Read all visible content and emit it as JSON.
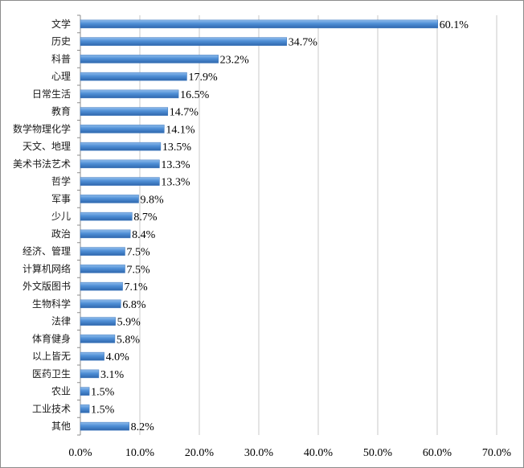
{
  "chart_data": {
    "type": "bar",
    "orientation": "horizontal",
    "categories": [
      "文学",
      "历史",
      "科普",
      "心理",
      "日常生活",
      "教育",
      "数学物理化学",
      "天文、地理",
      "美术书法艺术",
      "哲学",
      "军事",
      "少儿",
      "政治",
      "经济、管理",
      "计算机网络",
      "外文版图书",
      "生物科学",
      "法律",
      "体育健身",
      "以上皆无",
      "医药卫生",
      "农业",
      "工业技术",
      "其他"
    ],
    "values": [
      60.1,
      34.7,
      23.2,
      17.9,
      16.5,
      14.7,
      14.1,
      13.5,
      13.3,
      13.3,
      9.8,
      8.7,
      8.4,
      7.5,
      7.5,
      7.1,
      6.8,
      5.9,
      5.8,
      4.0,
      3.1,
      1.5,
      1.5,
      8.2
    ],
    "value_labels": [
      "60.1%",
      "34.7%",
      "23.2%",
      "17.9%",
      "16.5%",
      "14.7%",
      "14.1%",
      "13.5%",
      "13.3%",
      "13.3%",
      "9.8%",
      "8.7%",
      "8.4%",
      "7.5%",
      "7.5%",
      "7.1%",
      "6.8%",
      "5.9%",
      "5.8%",
      "4.0%",
      "3.1%",
      "1.5%",
      "1.5%",
      "8.2%"
    ],
    "xlim": [
      0,
      70
    ],
    "xticks": [
      "0.0%",
      "10.0%",
      "20.0%",
      "30.0%",
      "40.0%",
      "50.0%",
      "60.0%",
      "70.0%"
    ],
    "grid": "vertical",
    "legend": "none",
    "bar_color": "#4f8fd6",
    "title": "",
    "xlabel": "",
    "ylabel": ""
  }
}
